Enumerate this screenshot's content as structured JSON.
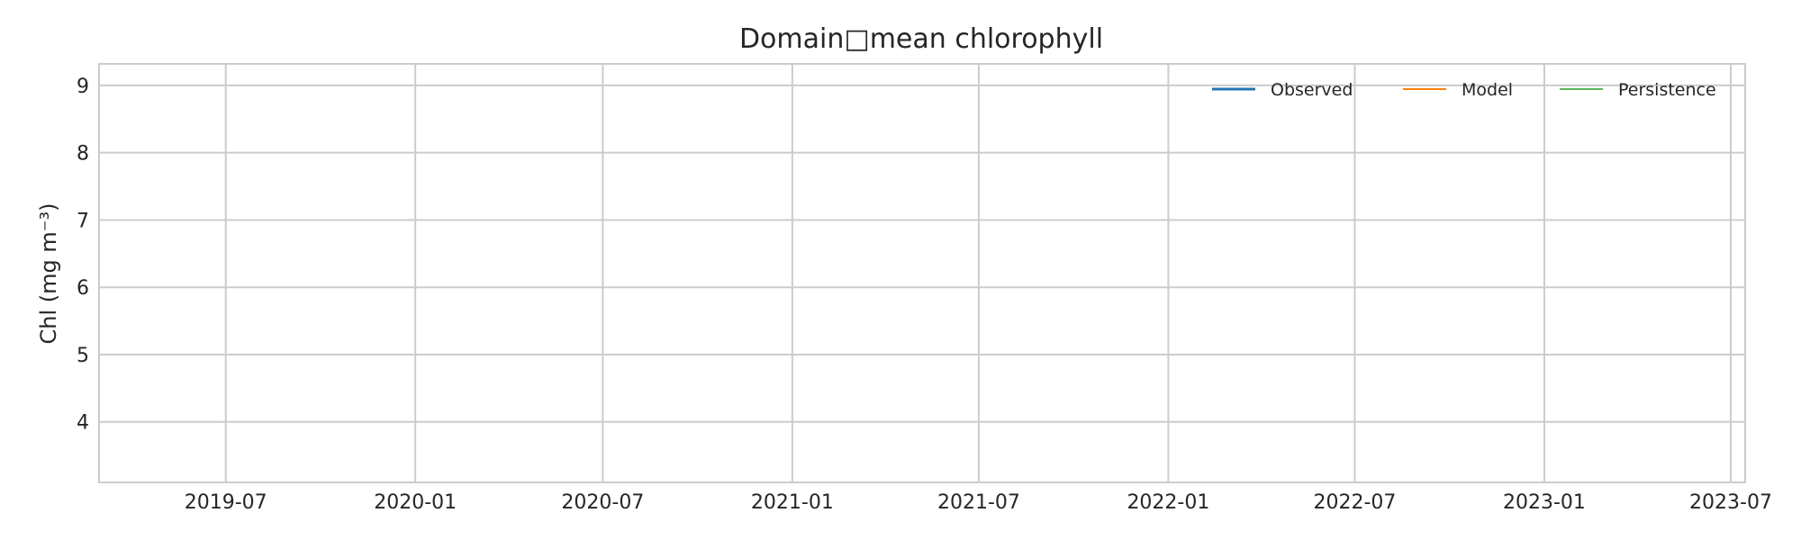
{
  "chart_data": {
    "type": "line",
    "title": "Domain□mean chlorophyll",
    "xlabel": "",
    "ylabel": "Chl (mg m⁻³)",
    "xlim": [
      "2019-02-28",
      "2023-07-15"
    ],
    "ylim": [
      3.1,
      9.32
    ],
    "x_ticks": [
      "2019-07",
      "2020-01",
      "2020-07",
      "2021-01",
      "2021-07",
      "2022-01",
      "2022-07",
      "2023-01",
      "2023-07"
    ],
    "y_ticks": [
      4,
      5,
      6,
      7,
      8,
      9
    ],
    "grid": true,
    "legend_position": "top-right",
    "series": [
      {
        "name": "Observed",
        "color": "#1f77b4",
        "x": [],
        "y": []
      },
      {
        "name": "Model",
        "color": "#ff7f0e",
        "x": [],
        "y": []
      },
      {
        "name": "Persistence",
        "color": "#5cb85c",
        "x": [],
        "y": []
      }
    ]
  }
}
